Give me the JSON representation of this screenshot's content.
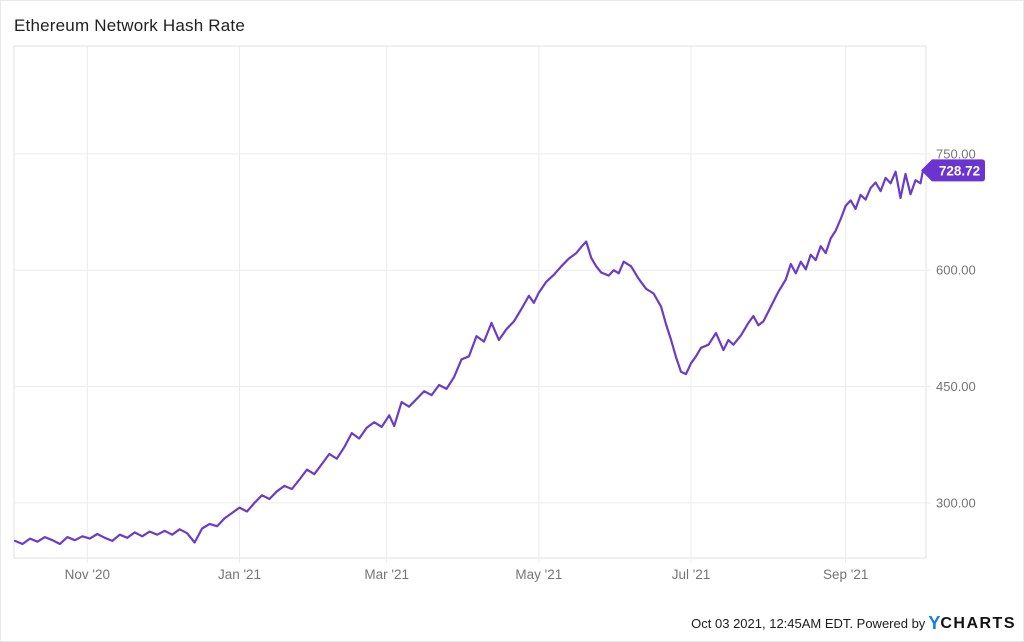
{
  "header": {
    "title": "Ethereum Network Hash Rate"
  },
  "footer": {
    "timestamp": "Oct 03 2021, 12:45AM EDT. Powered by",
    "brand_y": "Y",
    "brand_rest": "CHARTS"
  },
  "colors": {
    "line": "#6a3cc9",
    "badge_bg": "#6b34d1",
    "badge_text": "#ffffff",
    "grid": "#ececec",
    "plot_border": "#e0e0e0",
    "axis_text": "#757575",
    "title_text": "#212121",
    "brand_blue": "#1580d8"
  },
  "chart_data": {
    "type": "line",
    "title": "Ethereum Network Hash Rate",
    "series_name": "Ethereum Network Hash Rate",
    "x_range": [
      "2020-10-03",
      "2021-10-02"
    ],
    "ylim": [
      229,
      889
    ],
    "grid": true,
    "legend": "none",
    "last_value_label": "728.72",
    "y_ticks": [
      {
        "value": 750,
        "label": "750.00"
      },
      {
        "value": 600,
        "label": "600.00"
      },
      {
        "value": 450,
        "label": "450.00"
      },
      {
        "value": 300,
        "label": "300.00"
      }
    ],
    "x_ticks": [
      {
        "date": "2020-11-01",
        "label": "Nov '20"
      },
      {
        "date": "2021-01-01",
        "label": "Jan '21"
      },
      {
        "date": "2021-03-01",
        "label": "Mar '21"
      },
      {
        "date": "2021-05-01",
        "label": "May '21"
      },
      {
        "date": "2021-07-01",
        "label": "Jul '21"
      },
      {
        "date": "2021-09-01",
        "label": "Sep '21"
      }
    ],
    "points": [
      [
        "2020-10-03",
        251
      ],
      [
        "2020-10-06",
        247
      ],
      [
        "2020-10-09",
        254
      ],
      [
        "2020-10-12",
        250
      ],
      [
        "2020-10-15",
        256
      ],
      [
        "2020-10-18",
        252
      ],
      [
        "2020-10-21",
        247
      ],
      [
        "2020-10-24",
        256
      ],
      [
        "2020-10-27",
        252
      ],
      [
        "2020-10-30",
        257
      ],
      [
        "2020-11-02",
        254
      ],
      [
        "2020-11-05",
        260
      ],
      [
        "2020-11-08",
        255
      ],
      [
        "2020-11-11",
        251
      ],
      [
        "2020-11-14",
        259
      ],
      [
        "2020-11-17",
        255
      ],
      [
        "2020-11-20",
        262
      ],
      [
        "2020-11-23",
        257
      ],
      [
        "2020-11-26",
        263
      ],
      [
        "2020-11-29",
        259
      ],
      [
        "2020-12-02",
        264
      ],
      [
        "2020-12-05",
        259
      ],
      [
        "2020-12-08",
        266
      ],
      [
        "2020-12-11",
        261
      ],
      [
        "2020-12-14",
        249
      ],
      [
        "2020-12-17",
        267
      ],
      [
        "2020-12-20",
        273
      ],
      [
        "2020-12-23",
        270
      ],
      [
        "2020-12-26",
        280
      ],
      [
        "2020-12-29",
        287
      ],
      [
        "2021-01-01",
        294
      ],
      [
        "2021-01-04",
        289
      ],
      [
        "2021-01-07",
        300
      ],
      [
        "2021-01-10",
        310
      ],
      [
        "2021-01-13",
        305
      ],
      [
        "2021-01-16",
        315
      ],
      [
        "2021-01-19",
        322
      ],
      [
        "2021-01-22",
        318
      ],
      [
        "2021-01-25",
        330
      ],
      [
        "2021-01-28",
        343
      ],
      [
        "2021-01-31",
        337
      ],
      [
        "2021-02-03",
        350
      ],
      [
        "2021-02-06",
        363
      ],
      [
        "2021-02-09",
        357
      ],
      [
        "2021-02-12",
        372
      ],
      [
        "2021-02-15",
        390
      ],
      [
        "2021-02-18",
        383
      ],
      [
        "2021-02-21",
        397
      ],
      [
        "2021-02-24",
        404
      ],
      [
        "2021-02-27",
        398
      ],
      [
        "2021-03-02",
        413
      ],
      [
        "2021-03-04",
        399
      ],
      [
        "2021-03-07",
        430
      ],
      [
        "2021-03-10",
        424
      ],
      [
        "2021-03-13",
        434
      ],
      [
        "2021-03-16",
        444
      ],
      [
        "2021-03-19",
        439
      ],
      [
        "2021-03-22",
        452
      ],
      [
        "2021-03-25",
        447
      ],
      [
        "2021-03-28",
        462
      ],
      [
        "2021-03-31",
        485
      ],
      [
        "2021-04-03",
        489
      ],
      [
        "2021-04-06",
        515
      ],
      [
        "2021-04-09",
        508
      ],
      [
        "2021-04-12",
        532
      ],
      [
        "2021-04-15",
        510
      ],
      [
        "2021-04-18",
        524
      ],
      [
        "2021-04-21",
        534
      ],
      [
        "2021-04-24",
        550
      ],
      [
        "2021-04-27",
        567
      ],
      [
        "2021-04-29",
        558
      ],
      [
        "2021-05-01",
        571
      ],
      [
        "2021-05-04",
        585
      ],
      [
        "2021-05-07",
        594
      ],
      [
        "2021-05-10",
        605
      ],
      [
        "2021-05-13",
        615
      ],
      [
        "2021-05-16",
        622
      ],
      [
        "2021-05-18",
        630
      ],
      [
        "2021-05-20",
        637
      ],
      [
        "2021-05-22",
        616
      ],
      [
        "2021-05-24",
        605
      ],
      [
        "2021-05-26",
        597
      ],
      [
        "2021-05-29",
        593
      ],
      [
        "2021-05-31",
        600
      ],
      [
        "2021-06-02",
        596
      ],
      [
        "2021-06-04",
        611
      ],
      [
        "2021-06-07",
        605
      ],
      [
        "2021-06-10",
        589
      ],
      [
        "2021-06-13",
        576
      ],
      [
        "2021-06-16",
        570
      ],
      [
        "2021-06-19",
        553
      ],
      [
        "2021-06-21",
        530
      ],
      [
        "2021-06-23",
        510
      ],
      [
        "2021-06-25",
        488
      ],
      [
        "2021-06-27",
        469
      ],
      [
        "2021-06-29",
        466
      ],
      [
        "2021-07-01",
        480
      ],
      [
        "2021-07-03",
        489
      ],
      [
        "2021-07-05",
        500
      ],
      [
        "2021-07-08",
        504
      ],
      [
        "2021-07-11",
        519
      ],
      [
        "2021-07-14",
        497
      ],
      [
        "2021-07-16",
        510
      ],
      [
        "2021-07-18",
        504
      ],
      [
        "2021-07-21",
        516
      ],
      [
        "2021-07-24",
        532
      ],
      [
        "2021-07-26",
        541
      ],
      [
        "2021-07-28",
        529
      ],
      [
        "2021-07-30",
        534
      ],
      [
        "2021-08-02",
        553
      ],
      [
        "2021-08-05",
        572
      ],
      [
        "2021-08-08",
        588
      ],
      [
        "2021-08-10",
        608
      ],
      [
        "2021-08-12",
        596
      ],
      [
        "2021-08-14",
        611
      ],
      [
        "2021-08-16",
        601
      ],
      [
        "2021-08-18",
        620
      ],
      [
        "2021-08-20",
        613
      ],
      [
        "2021-08-22",
        631
      ],
      [
        "2021-08-24",
        622
      ],
      [
        "2021-08-26",
        641
      ],
      [
        "2021-08-28",
        651
      ],
      [
        "2021-08-30",
        666
      ],
      [
        "2021-09-01",
        683
      ],
      [
        "2021-09-03",
        690
      ],
      [
        "2021-09-05",
        679
      ],
      [
        "2021-09-07",
        697
      ],
      [
        "2021-09-09",
        691
      ],
      [
        "2021-09-11",
        706
      ],
      [
        "2021-09-13",
        713
      ],
      [
        "2021-09-15",
        702
      ],
      [
        "2021-09-17",
        719
      ],
      [
        "2021-09-19",
        712
      ],
      [
        "2021-09-21",
        727
      ],
      [
        "2021-09-23",
        693
      ],
      [
        "2021-09-25",
        724
      ],
      [
        "2021-09-27",
        698
      ],
      [
        "2021-09-29",
        716
      ],
      [
        "2021-10-01",
        712
      ],
      [
        "2021-10-02",
        728.72
      ]
    ]
  }
}
